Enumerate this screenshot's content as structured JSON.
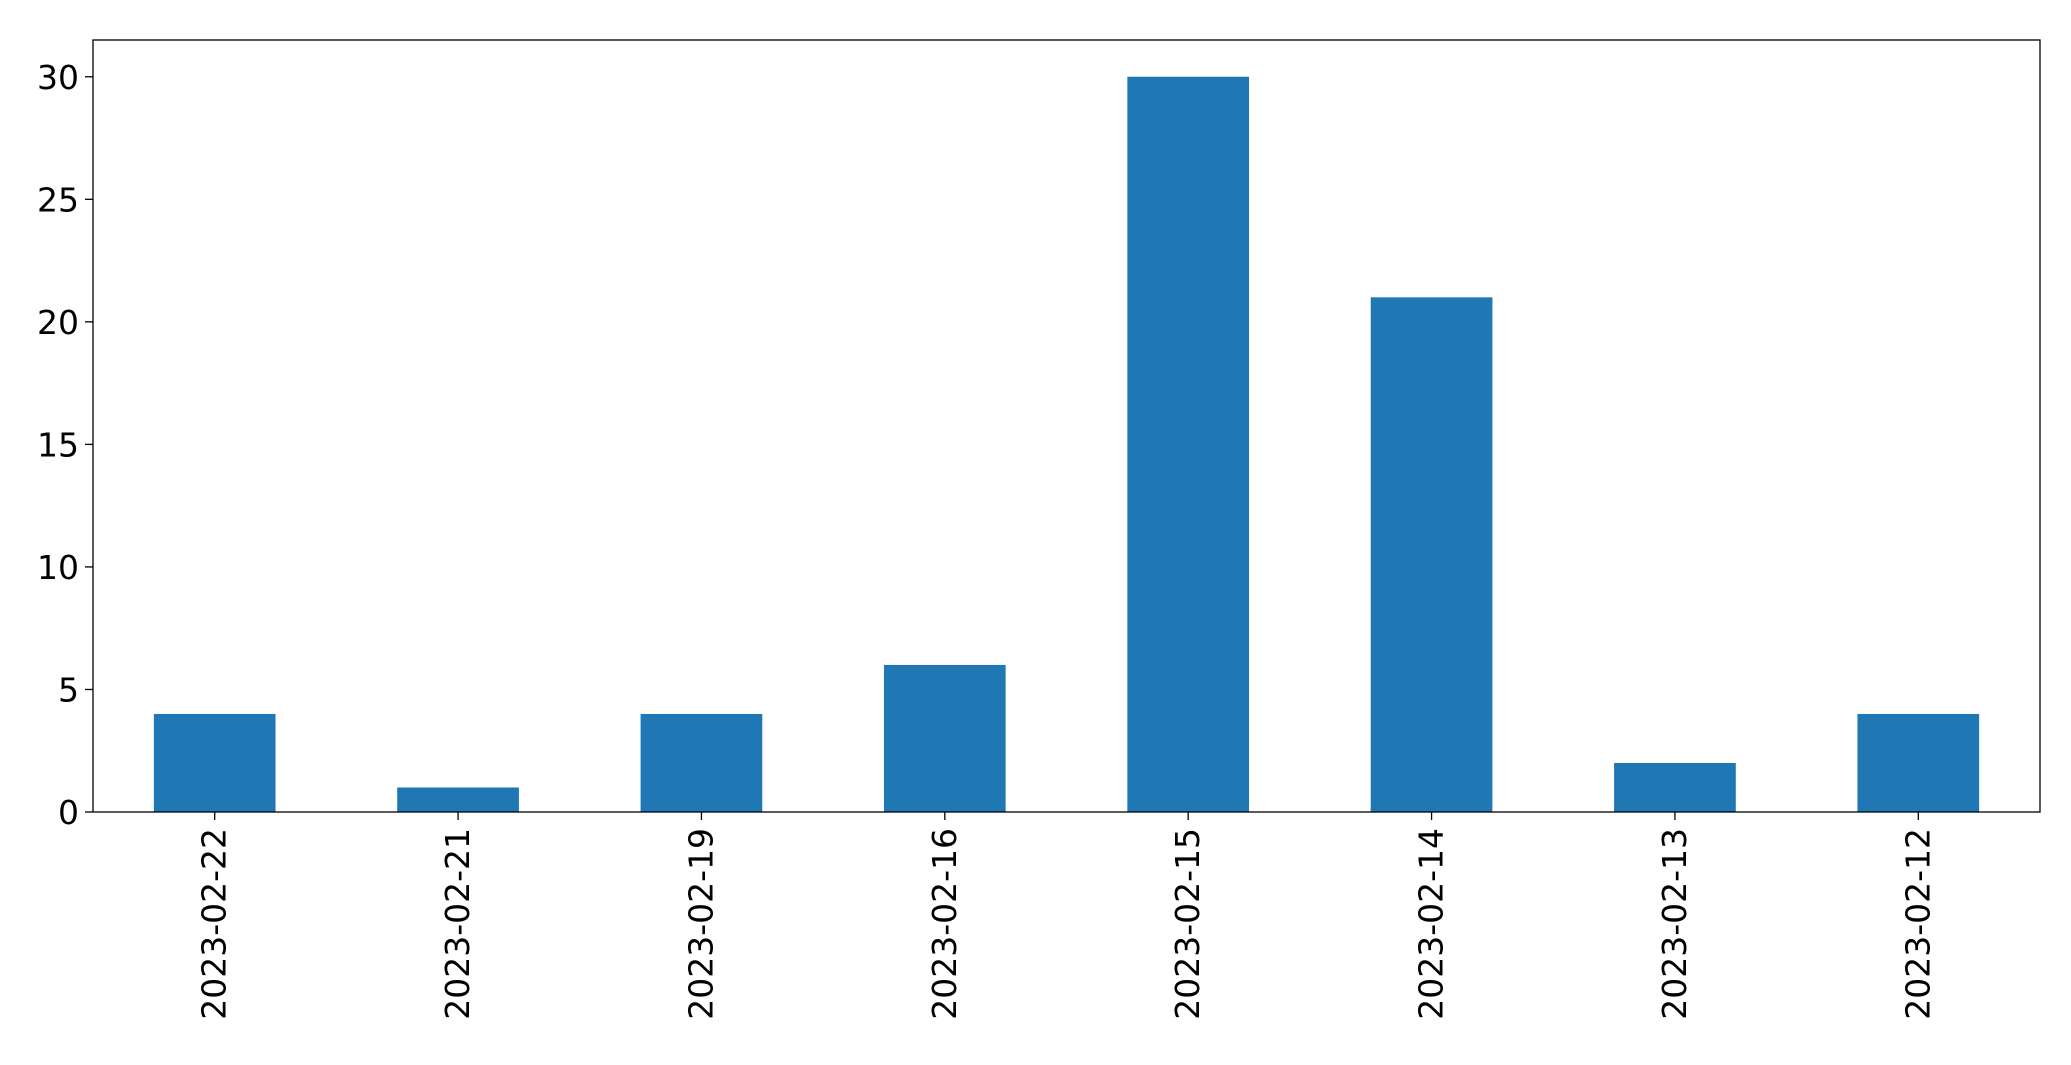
{
  "chart_data": {
    "type": "bar",
    "title": "",
    "xlabel": "",
    "ylabel": "",
    "categories": [
      "2023-02-22",
      "2023-02-21",
      "2023-02-19",
      "2023-02-16",
      "2023-02-15",
      "2023-02-14",
      "2023-02-13",
      "2023-02-12"
    ],
    "values": [
      4,
      1,
      4,
      6,
      30,
      21,
      2,
      4
    ],
    "ylim": [
      0,
      31.5
    ],
    "yticks": [
      0,
      5,
      10,
      15,
      20,
      25,
      30
    ],
    "grid": false,
    "legend": "none",
    "bar_color": "#1f77b4"
  }
}
